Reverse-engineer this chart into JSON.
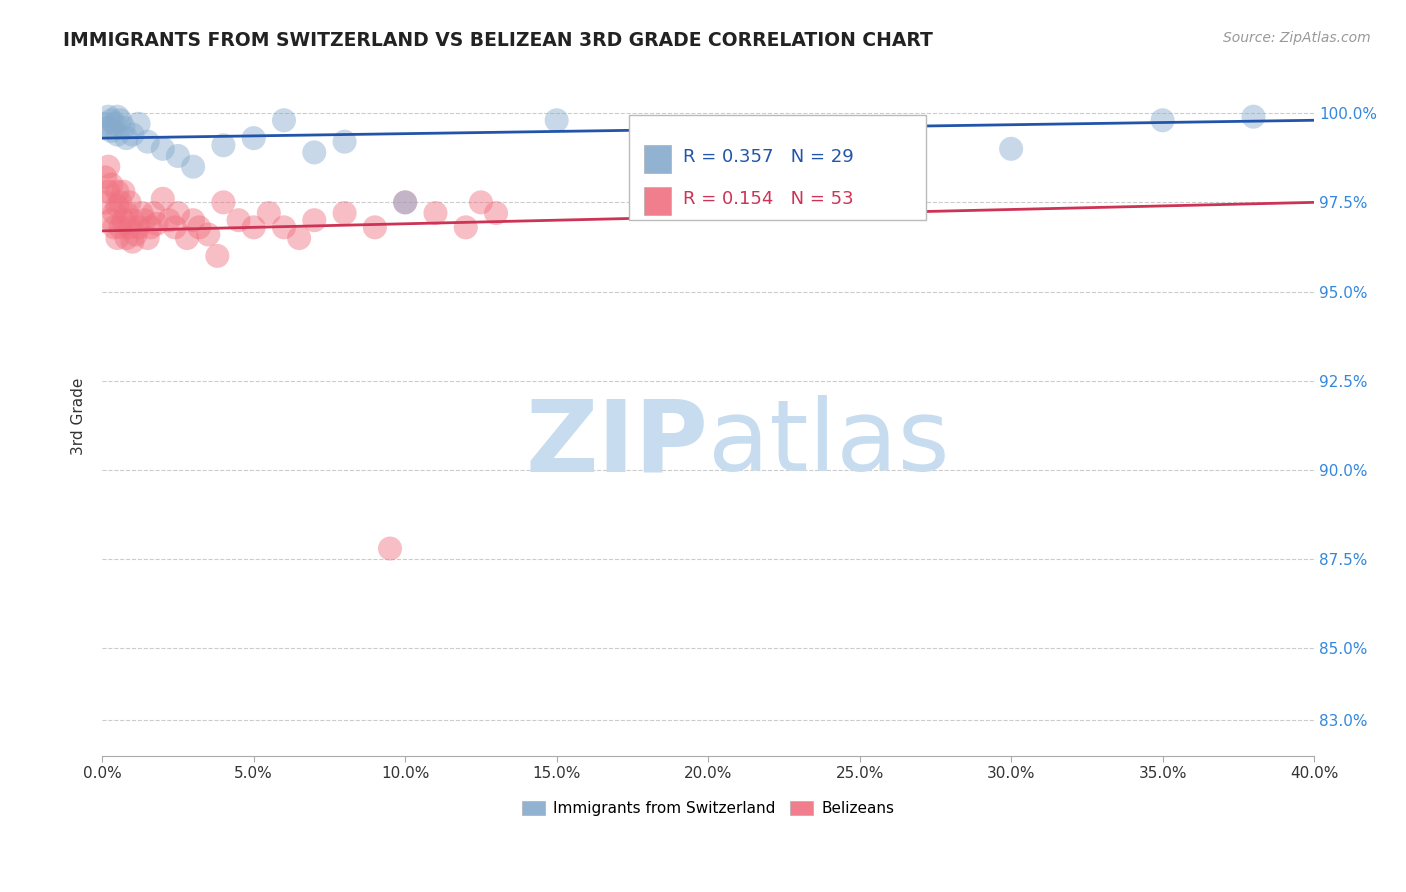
{
  "title": "IMMIGRANTS FROM SWITZERLAND VS BELIZEAN 3RD GRADE CORRELATION CHART",
  "source_text": "Source: ZipAtlas.com",
  "ylabel": "3rd Grade",
  "xmin": 0.0,
  "xmax": 0.4,
  "ymin": 0.82,
  "ymax": 1.01,
  "blue_r": "0.357",
  "blue_n": "29",
  "pink_r": "0.154",
  "pink_n": "53",
  "blue_color": "#85AACC",
  "pink_color": "#F07080",
  "blue_line_color": "#2255AA",
  "pink_line_color": "#CC3355",
  "blue_scatter_x": [
    0.001,
    0.002,
    0.002,
    0.003,
    0.003,
    0.004,
    0.005,
    0.005,
    0.006,
    0.007,
    0.008,
    0.01,
    0.012,
    0.015,
    0.02,
    0.025,
    0.03,
    0.04,
    0.05,
    0.06,
    0.07,
    0.08,
    0.1,
    0.15,
    0.2,
    0.25,
    0.3,
    0.35,
    0.38
  ],
  "blue_scatter_y": [
    0.997,
    0.996,
    0.999,
    0.998,
    0.995,
    0.997,
    0.999,
    0.994,
    0.998,
    0.996,
    0.993,
    0.994,
    0.997,
    0.992,
    0.99,
    0.988,
    0.985,
    0.991,
    0.993,
    0.998,
    0.989,
    0.992,
    0.975,
    0.998,
    0.994,
    0.985,
    0.99,
    0.998,
    0.999
  ],
  "pink_scatter_x": [
    0.001,
    0.001,
    0.002,
    0.002,
    0.003,
    0.003,
    0.004,
    0.004,
    0.005,
    0.005,
    0.005,
    0.006,
    0.006,
    0.007,
    0.007,
    0.008,
    0.008,
    0.009,
    0.009,
    0.01,
    0.01,
    0.011,
    0.012,
    0.013,
    0.014,
    0.015,
    0.016,
    0.017,
    0.018,
    0.02,
    0.022,
    0.024,
    0.025,
    0.028,
    0.03,
    0.032,
    0.035,
    0.038,
    0.04,
    0.045,
    0.05,
    0.055,
    0.06,
    0.065,
    0.07,
    0.08,
    0.09,
    0.1,
    0.11,
    0.12,
    0.125,
    0.13,
    0.095
  ],
  "pink_scatter_y": [
    0.975,
    0.982,
    0.978,
    0.985,
    0.97,
    0.98,
    0.972,
    0.968,
    0.974,
    0.965,
    0.978,
    0.968,
    0.975,
    0.97,
    0.978,
    0.965,
    0.972,
    0.968,
    0.975,
    0.964,
    0.97,
    0.966,
    0.968,
    0.972,
    0.97,
    0.965,
    0.968,
    0.972,
    0.969,
    0.976,
    0.97,
    0.968,
    0.972,
    0.965,
    0.97,
    0.968,
    0.966,
    0.96,
    0.975,
    0.97,
    0.968,
    0.972,
    0.968,
    0.965,
    0.97,
    0.972,
    0.968,
    0.975,
    0.972,
    0.968,
    0.975,
    0.972,
    0.878
  ],
  "blue_trendline_x": [
    0.0,
    0.4
  ],
  "blue_trendline_y": [
    0.993,
    0.998
  ],
  "pink_trendline_x": [
    0.0,
    0.4
  ],
  "pink_trendline_y": [
    0.967,
    0.975
  ],
  "ytick_positions": [
    0.83,
    0.85,
    0.875,
    0.9,
    0.925,
    0.95,
    0.975,
    1.0
  ],
  "ytick_labels": [
    "83.0%",
    "85.0%",
    "87.5%",
    "90.0%",
    "92.5%",
    "95.0%",
    "97.5%",
    "100.0%"
  ],
  "xtick_positions": [
    0.0,
    0.05,
    0.1,
    0.15,
    0.2,
    0.25,
    0.3,
    0.35,
    0.4
  ],
  "xtick_labels": [
    "0.0%",
    "5.0%",
    "10.0%",
    "15.0%",
    "20.0%",
    "25.0%",
    "30.0%",
    "35.0%",
    "40.0%"
  ],
  "grid_color": "#CCCCCC",
  "watermark_zip": "ZIP",
  "watermark_atlas": "atlas",
  "watermark_color": "#C8DCF0",
  "background_color": "#FFFFFF"
}
